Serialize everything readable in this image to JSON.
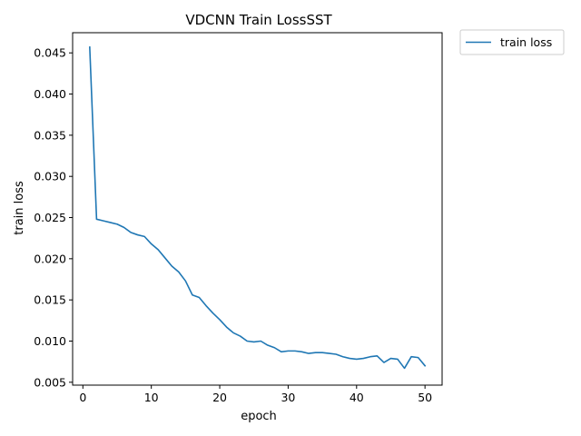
{
  "chart_data": {
    "type": "line",
    "title": "VDCNN Train LossSST",
    "xlabel": "epoch",
    "ylabel": "train loss",
    "xlim": [
      -1.5,
      52.5
    ],
    "ylim": [
      0.00465,
      0.04745
    ],
    "xticks": [
      0,
      10,
      20,
      30,
      40,
      50
    ],
    "xtick_labels": [
      "0",
      "10",
      "20",
      "30",
      "40",
      "50"
    ],
    "yticks": [
      0.005,
      0.01,
      0.015,
      0.02,
      0.025,
      0.03,
      0.035,
      0.04,
      0.045
    ],
    "ytick_labels": [
      "0.005",
      "0.010",
      "0.015",
      "0.020",
      "0.025",
      "0.030",
      "0.035",
      "0.040",
      "0.045"
    ],
    "grid": false,
    "legend_position": "outside top-right",
    "series": [
      {
        "name": "train loss",
        "color": "#1f77b4",
        "x": [
          1,
          2,
          3,
          4,
          5,
          6,
          7,
          8,
          9,
          10,
          11,
          12,
          13,
          14,
          15,
          16,
          17,
          18,
          19,
          20,
          21,
          22,
          23,
          24,
          25,
          26,
          27,
          28,
          29,
          30,
          31,
          32,
          33,
          34,
          35,
          36,
          37,
          38,
          39,
          40,
          41,
          42,
          43,
          44,
          45,
          46,
          47,
          48,
          49,
          50
        ],
        "y": [
          0.0457,
          0.0248,
          0.0246,
          0.0244,
          0.0242,
          0.0238,
          0.0232,
          0.0229,
          0.0227,
          0.0218,
          0.0211,
          0.0201,
          0.0191,
          0.0184,
          0.0173,
          0.0156,
          0.0153,
          0.0143,
          0.0134,
          0.0126,
          0.0117,
          0.011,
          0.0106,
          0.01,
          0.0099,
          0.01,
          0.0095,
          0.0092,
          0.0087,
          0.0088,
          0.0088,
          0.0087,
          0.0085,
          0.0086,
          0.0086,
          0.0085,
          0.0084,
          0.0081,
          0.0079,
          0.0078,
          0.0079,
          0.0081,
          0.0082,
          0.0074,
          0.0079,
          0.0078,
          0.0067,
          0.0081,
          0.008,
          0.007
        ]
      }
    ]
  }
}
